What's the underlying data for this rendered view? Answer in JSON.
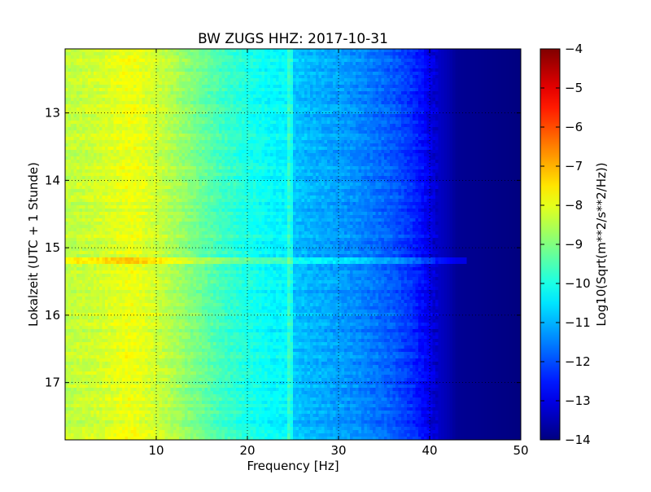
{
  "chart_data": {
    "type": "heatmap",
    "title": "BW ZUGS HHZ: 2017-10-31",
    "xlabel": "Frequency [Hz]",
    "ylabel": "Lokalzeit (UTC + 1 Stunde)",
    "colorbar_label": "Log10(Sqrt(m**2/s**2/Hz))",
    "xlim": [
      0,
      50
    ],
    "ylim": [
      17.85,
      12.05
    ],
    "y_inverted": true,
    "xticks": [
      10,
      20,
      30,
      40,
      50
    ],
    "xticklabels": [
      "10",
      "20",
      "30",
      "40",
      "50"
    ],
    "yticks": [
      13,
      14,
      15,
      16,
      17
    ],
    "yticklabels": [
      "13",
      "14",
      "15",
      "16",
      "17"
    ],
    "clim": [
      -14,
      -4
    ],
    "cbar_ticks": [
      -4,
      -5,
      -6,
      -7,
      -8,
      -9,
      -10,
      -11,
      -12,
      -13,
      -14
    ],
    "cbar_ticklabels": [
      "−4",
      "−5",
      "−6",
      "−7",
      "−8",
      "−9",
      "−10",
      "−11",
      "−12",
      "−13",
      "−14"
    ],
    "colormap": "jet",
    "grid": true,
    "spectrum_profile": {
      "frequency_hz": [
        0,
        2,
        4,
        6,
        7.5,
        9,
        11,
        13,
        15,
        17,
        20,
        23,
        24.5,
        25,
        27,
        30,
        33,
        36,
        38,
        39.5,
        40.5,
        42,
        43,
        50
      ],
      "log10_amplitude": [
        -8.4,
        -8.3,
        -8.2,
        -8.0,
        -7.9,
        -8.1,
        -8.4,
        -8.8,
        -9.2,
        -9.6,
        -10.0,
        -10.3,
        -10.3,
        -10.8,
        -11.0,
        -11.2,
        -11.5,
        -11.9,
        -12.3,
        -12.8,
        -13.2,
        -13.5,
        -13.8,
        -14.0
      ]
    },
    "notable_features": [
      {
        "label": "broadband band",
        "time": 15.2,
        "freq_range_hz": [
          0,
          44
        ],
        "delta_log10": 0.8
      },
      {
        "label": "narrow line",
        "frequency_hz": 24.8,
        "delta_log10": 0.6
      }
    ]
  }
}
